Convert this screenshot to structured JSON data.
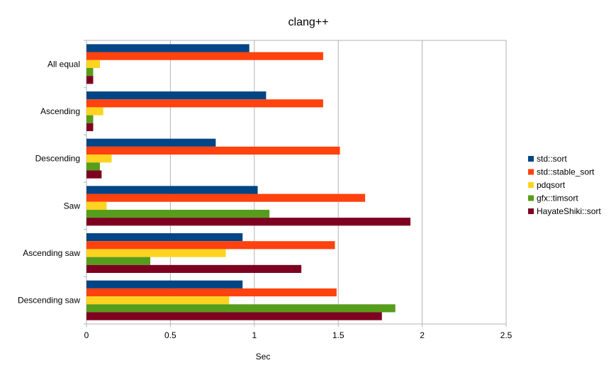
{
  "chart_data": {
    "type": "bar",
    "orientation": "horizontal",
    "title": "clang++",
    "xlabel": "Sec",
    "ylabel": "",
    "xlim": [
      0,
      2.5
    ],
    "xticks": [
      "0",
      "0.5",
      "1",
      "1.5",
      "2",
      "2.5"
    ],
    "grid": true,
    "legend_position": "right",
    "categories": [
      "All equal",
      "Ascending",
      "Descending",
      "Saw",
      "Ascending saw",
      "Descending saw"
    ],
    "series": [
      {
        "name": "std::sort",
        "color": "#004586",
        "values": [
          0.97,
          1.07,
          0.77,
          1.02,
          0.93,
          0.93
        ]
      },
      {
        "name": "std::stable_sort",
        "color": "#ff420e",
        "values": [
          1.41,
          1.41,
          1.51,
          1.66,
          1.48,
          1.49
        ]
      },
      {
        "name": "pdqsort",
        "color": "#ffd320",
        "values": [
          0.08,
          0.1,
          0.15,
          0.12,
          0.83,
          0.85
        ]
      },
      {
        "name": "gfx::timsort",
        "color": "#579d1c",
        "values": [
          0.04,
          0.04,
          0.08,
          1.09,
          0.38,
          1.84
        ]
      },
      {
        "name": "HayateShiki::sort",
        "color": "#7e0021",
        "values": [
          0.04,
          0.04,
          0.09,
          1.93,
          1.28,
          1.76
        ]
      }
    ]
  }
}
